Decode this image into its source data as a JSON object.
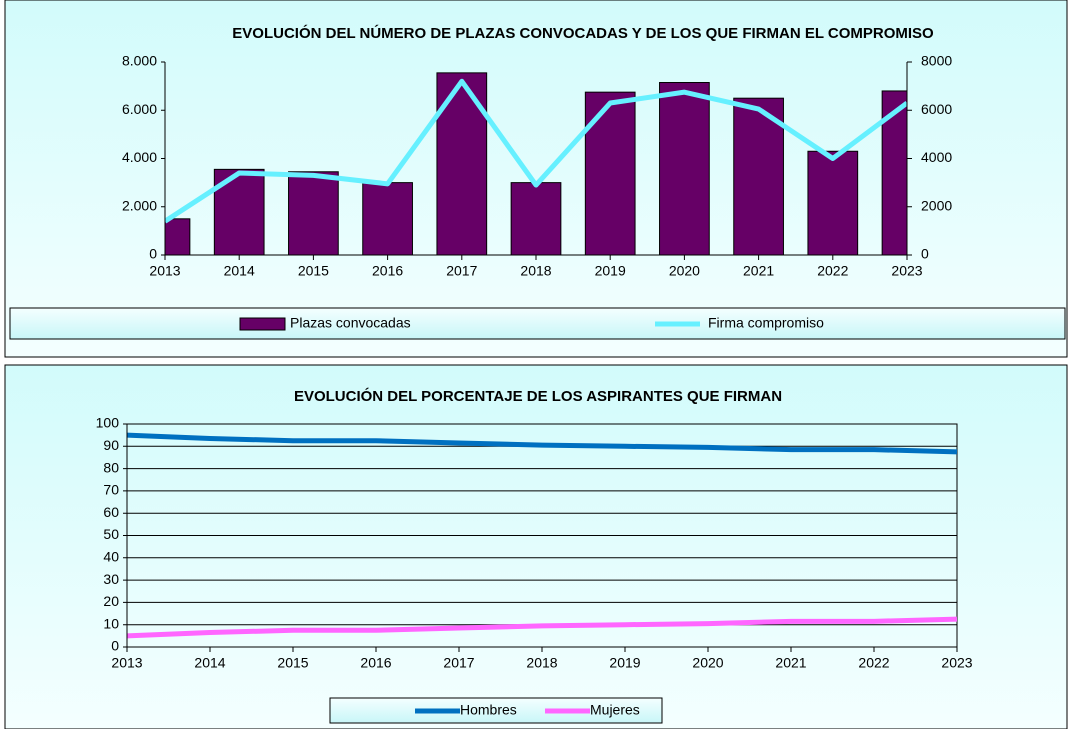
{
  "chart_data": [
    {
      "type": "combo",
      "title": "EVOLUCIÓN DEL NÚMERO DE PLAZAS CONVOCADAS Y DE LOS QUE FIRMAN EL COMPROMISO",
      "categories": [
        "2013",
        "2014",
        "2015",
        "2016",
        "2017",
        "2018",
        "2019",
        "2020",
        "2021",
        "2022",
        "2023"
      ],
      "series": [
        {
          "name": "Plazas convocadas",
          "type": "bar",
          "color": "#660066",
          "values": [
            1500,
            3550,
            3450,
            3000,
            7550,
            3000,
            6750,
            7150,
            6500,
            4300,
            6800
          ]
        },
        {
          "name": "Firma compromiso",
          "type": "line",
          "color": "#66f0ff",
          "axis": "y2",
          "values": [
            1400,
            3400,
            3300,
            2950,
            7200,
            2900,
            6300,
            6750,
            6050,
            4000,
            6300
          ]
        }
      ],
      "ylim": [
        0,
        8000
      ],
      "yticks": [
        0,
        {
          "value": 2000,
          "label": "2.000"
        },
        {
          "value": 4000,
          "label": "4.000"
        },
        {
          "value": 6000,
          "label": "6.000"
        },
        {
          "value": 8000,
          "label": "8.000"
        }
      ],
      "y2lim": [
        0,
        8000
      ],
      "y2ticks": [
        0,
        2000,
        4000,
        6000,
        8000
      ],
      "grid": false
    },
    {
      "type": "line",
      "title": "EVOLUCIÓN DEL PORCENTAJE DE LOS ASPIRANTES QUE FIRMAN",
      "categories": [
        "2013",
        "2014",
        "2015",
        "2016",
        "2017",
        "2018",
        "2019",
        "2020",
        "2021",
        "2022",
        "2023"
      ],
      "series": [
        {
          "name": "Hombres",
          "type": "line",
          "color": "#0070c0",
          "values": [
            95,
            93.5,
            92.5,
            92.5,
            91.5,
            90.5,
            90,
            89.5,
            88.5,
            88.5,
            87.5
          ]
        },
        {
          "name": "Mujeres",
          "type": "line",
          "color": "#ff66ff",
          "values": [
            5,
            6.5,
            7.5,
            7.5,
            8.5,
            9.5,
            10,
            10.5,
            11.5,
            11.5,
            12.5
          ]
        }
      ],
      "ylim": [
        0,
        100
      ],
      "yticks": [
        0,
        10,
        20,
        30,
        40,
        50,
        60,
        70,
        80,
        90,
        100
      ],
      "grid": true
    }
  ]
}
